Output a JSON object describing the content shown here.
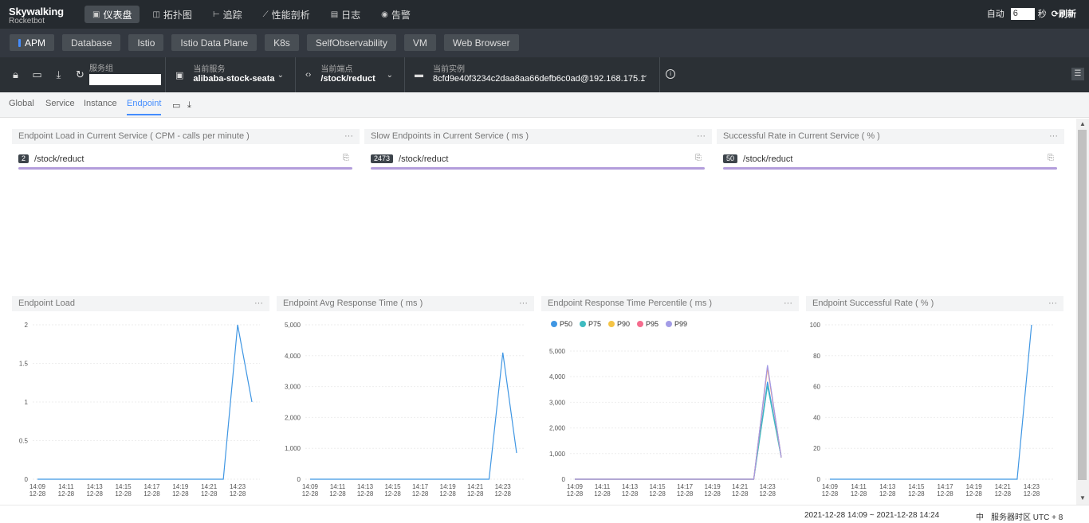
{
  "app": {
    "name": "Skywalking",
    "sub": "Rocketbot"
  },
  "nav": [
    {
      "label": "仪表盘",
      "icon": "dashboard-icon",
      "glyph": "▣",
      "active": true
    },
    {
      "label": "拓扑图",
      "icon": "topology-icon",
      "glyph": "◫",
      "active": false
    },
    {
      "label": "追踪",
      "icon": "trace-icon",
      "glyph": "⊢",
      "active": false
    },
    {
      "label": "性能剖析",
      "icon": "profile-icon",
      "glyph": "⟋",
      "active": false
    },
    {
      "label": "日志",
      "icon": "log-icon",
      "glyph": "▤",
      "active": false
    },
    {
      "label": "告警",
      "icon": "alarm-icon",
      "glyph": "◉",
      "active": false
    }
  ],
  "topright": {
    "auto_label": "自动",
    "interval": "6",
    "unit": "秒",
    "refresh": "刷新"
  },
  "tabs": [
    {
      "label": "APM",
      "active": true
    },
    {
      "label": "Database"
    },
    {
      "label": "Istio"
    },
    {
      "label": "Istio Data Plane"
    },
    {
      "label": "K8s"
    },
    {
      "label": "SelfObservability"
    },
    {
      "label": "VM"
    },
    {
      "label": "Web Browser"
    }
  ],
  "toolbar": {
    "group_label": "服务组",
    "group_value": "",
    "service_label": "当前服务",
    "service_value": "alibaba-stock-seata",
    "endpoint_label": "当前端点",
    "endpoint_value": "/stock/reduct",
    "instance_label": "当前实例",
    "instance_value": "8cfd9e40f3234c2daa8aa66defb6c0ad@192.168.175.1"
  },
  "subtabs": [
    {
      "label": "Global"
    },
    {
      "label": "Service"
    },
    {
      "label": "Instance"
    },
    {
      "label": "Endpoint",
      "active": true
    }
  ],
  "top_panels": [
    {
      "title": "Endpoint Load in Current Service ( CPM - calls per minute )",
      "badge": "2",
      "endpoint": "/stock/reduct"
    },
    {
      "title": "Slow Endpoints in Current Service ( ms )",
      "badge": "2473",
      "endpoint": "/stock/reduct"
    },
    {
      "title": "Successful Rate in Current Service ( % )",
      "badge": "50",
      "endpoint": "/stock/reduct"
    }
  ],
  "chart_data": [
    {
      "type": "line",
      "title": "Endpoint Load",
      "x": [
        "14:09\n12-28",
        "14:11\n12-28",
        "14:13\n12-28",
        "14:15\n12-28",
        "14:17\n12-28",
        "14:19\n12-28",
        "14:21\n12-28",
        "14:23\n12-28"
      ],
      "yticks": [
        "0",
        "0.5",
        "1",
        "1.5",
        "2"
      ],
      "ylim": [
        0,
        2
      ],
      "series": [
        {
          "color": "#3f96e3",
          "points": [
            [
              0,
              0
            ],
            [
              13,
              0
            ],
            [
              14,
              2
            ],
            [
              15,
              1
            ]
          ]
        }
      ]
    },
    {
      "type": "line",
      "title": "Endpoint Avg Response Time ( ms )",
      "x": [
        "14:09\n12-28",
        "14:11\n12-28",
        "14:13\n12-28",
        "14:15\n12-28",
        "14:17\n12-28",
        "14:19\n12-28",
        "14:21\n12-28",
        "14:23\n12-28"
      ],
      "yticks": [
        "0",
        "1,000",
        "2,000",
        "3,000",
        "4,000",
        "5,000"
      ],
      "ylim": [
        0,
        5000
      ],
      "series": [
        {
          "color": "#3f96e3",
          "points": [
            [
              0,
              0
            ],
            [
              13,
              0
            ],
            [
              14,
              4100
            ],
            [
              15,
              850
            ]
          ]
        }
      ]
    },
    {
      "type": "line",
      "title": "Endpoint Response Time Percentile ( ms )",
      "x": [
        "14:09\n12-28",
        "14:11\n12-28",
        "14:13\n12-28",
        "14:15\n12-28",
        "14:17\n12-28",
        "14:19\n12-28",
        "14:21\n12-28",
        "14:23\n12-28"
      ],
      "yticks": [
        "0",
        "1,000",
        "2,000",
        "3,000",
        "4,000",
        "5,000"
      ],
      "ylim": [
        0,
        5000
      ],
      "series": [
        {
          "name": "P50",
          "color": "#3f96e3",
          "points": [
            [
              0,
              0
            ],
            [
              13,
              0
            ],
            [
              14,
              3800
            ],
            [
              15,
              850
            ]
          ]
        },
        {
          "name": "P75",
          "color": "#3fbbc0",
          "points": [
            [
              0,
              0
            ],
            [
              13,
              0
            ],
            [
              14,
              3650
            ],
            [
              15,
              850
            ]
          ]
        },
        {
          "name": "P90",
          "color": "#f5c445",
          "points": [
            [
              0,
              0
            ],
            [
              13,
              0
            ],
            [
              14,
              4350
            ],
            [
              15,
              850
            ]
          ]
        },
        {
          "name": "P95",
          "color": "#f56c8e",
          "points": [
            [
              0,
              0
            ],
            [
              13,
              0
            ],
            [
              14,
              4400
            ],
            [
              15,
              850
            ]
          ]
        },
        {
          "name": "P99",
          "color": "#a39ce6",
          "points": [
            [
              0,
              0
            ],
            [
              13,
              0
            ],
            [
              14,
              4450
            ],
            [
              15,
              850
            ]
          ]
        }
      ]
    },
    {
      "type": "line",
      "title": "Endpoint Successful Rate ( % )",
      "x": [
        "14:09\n12-28",
        "14:11\n12-28",
        "14:13\n12-28",
        "14:15\n12-28",
        "14:17\n12-28",
        "14:19\n12-28",
        "14:21\n12-28",
        "14:23\n12-28"
      ],
      "yticks": [
        "0",
        "20",
        "40",
        "60",
        "80",
        "100"
      ],
      "ylim": [
        0,
        100
      ],
      "series": [
        {
          "color": "#3f96e3",
          "points": [
            [
              0,
              0
            ],
            [
              13,
              0
            ],
            [
              14,
              100
            ]
          ]
        }
      ]
    }
  ],
  "footer": {
    "range": "2021-12-28 14:09 ~ 2021-12-28 14:24",
    "lang": "中",
    "tz": "服务器时区 UTC + 8"
  }
}
